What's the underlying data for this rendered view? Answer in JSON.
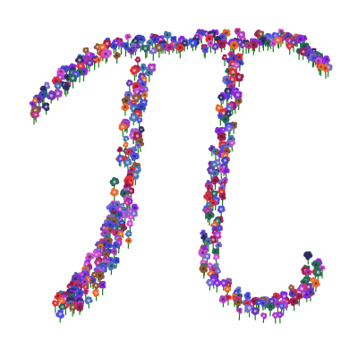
{
  "image": {
    "subject": "pi-symbol-flowers-icon",
    "background_color": "#ffffff",
    "stem_color": "#1a7a1a",
    "flower_palette": [
      "#8a2be2",
      "#c0328c",
      "#e0303a",
      "#3a4ad0",
      "#6a3ab0",
      "#d050d0",
      "#4a7ab0",
      "#8a5a3a",
      "#e86a30",
      "#2a6a5a",
      "#b040c0",
      "#5050e0",
      "#a02050",
      "#7a6ad0",
      "#30306a"
    ]
  }
}
